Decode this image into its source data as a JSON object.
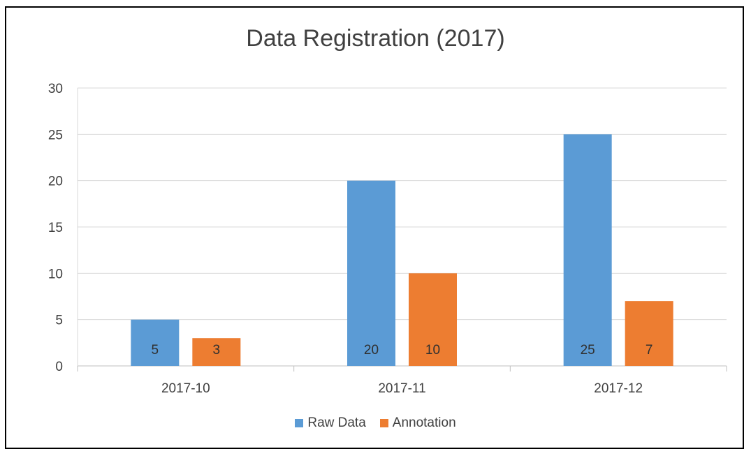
{
  "chart_data": {
    "type": "bar",
    "title": "Data Registration (2017)",
    "categories": [
      "2017-10",
      "2017-11",
      "2017-12"
    ],
    "series": [
      {
        "name": "Raw Data",
        "values": [
          5,
          20,
          25
        ],
        "color": "#5b9bd5"
      },
      {
        "name": "Annotation",
        "values": [
          3,
          10,
          7
        ],
        "color": "#ed7d31"
      }
    ],
    "ylim": [
      0,
      30
    ],
    "yticks": [
      0,
      5,
      10,
      15,
      20,
      25,
      30
    ],
    "grid": true,
    "legend": "bottom",
    "data_labels": "inside-base"
  }
}
